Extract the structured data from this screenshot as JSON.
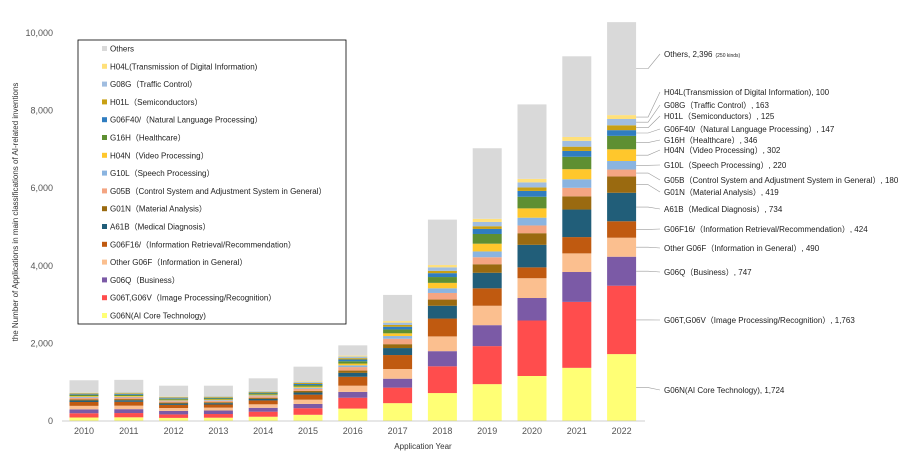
{
  "chart_data": {
    "type": "bar",
    "stacked": true,
    "title": "",
    "xlabel": "Application Year",
    "ylabel": "the Number of Applications in main classifications of AI-related inventions",
    "ylim": [
      0,
      10000
    ],
    "yticks": [
      0,
      2000,
      4000,
      6000,
      8000,
      10000
    ],
    "ytick_labels": [
      "0",
      "2,000",
      "4,000",
      "6,000",
      "8,000",
      "10,000"
    ],
    "grid": false,
    "legend_position": "top-left",
    "categories": [
      "2010",
      "2011",
      "2012",
      "2013",
      "2014",
      "2015",
      "2016",
      "2017",
      "2018",
      "2019",
      "2020",
      "2021",
      "2022"
    ],
    "series": [
      {
        "name": "G06N(AI Core Technology)",
        "color": "#ffff75",
        "values": [
          90,
          95,
          80,
          85,
          110,
          160,
          320,
          460,
          720,
          950,
          1160,
          1370,
          1724
        ]
      },
      {
        "name": "G06T,G06V（Image Processing/Recognition）",
        "color": "#ff4d4d",
        "values": [
          110,
          110,
          90,
          95,
          130,
          170,
          280,
          400,
          690,
          980,
          1430,
          1700,
          1763
        ]
      },
      {
        "name": "G06Q（Business）",
        "color": "#7b5aa6",
        "values": [
          100,
          100,
          90,
          90,
          100,
          110,
          150,
          230,
          390,
          540,
          580,
          770,
          747
        ]
      },
      {
        "name": "Other G06F（Information in General）",
        "color": "#fbbf8f",
        "values": [
          90,
          90,
          75,
          75,
          90,
          110,
          160,
          250,
          380,
          500,
          510,
          480,
          490
        ]
      },
      {
        "name": "G06F16/（Information Retrieval/Recommendation）",
        "color": "#c05a10",
        "values": [
          100,
          100,
          80,
          80,
          100,
          130,
          230,
          360,
          460,
          450,
          280,
          420,
          424
        ]
      },
      {
        "name": "A61B（Medical Diagnosis）",
        "color": "#215e79",
        "values": [
          40,
          40,
          35,
          35,
          40,
          55,
          100,
          180,
          330,
          400,
          580,
          710,
          734
        ]
      },
      {
        "name": "G01N（Material Analysis）",
        "color": "#9a6a10",
        "values": [
          30,
          30,
          25,
          25,
          30,
          40,
          60,
          100,
          160,
          220,
          300,
          340,
          419
        ]
      },
      {
        "name": "G05B（Control System and Adjustment System in General）",
        "color": "#f4a582",
        "values": [
          40,
          40,
          35,
          35,
          40,
          55,
          90,
          140,
          170,
          180,
          200,
          220,
          180
        ]
      },
      {
        "name": "G10L（Speech Processing）",
        "color": "#8ab4e0",
        "values": [
          20,
          20,
          18,
          18,
          20,
          28,
          45,
          70,
          120,
          150,
          200,
          220,
          220
        ]
      },
      {
        "name": "H04N（Video Processing）",
        "color": "#ffc72c",
        "values": [
          20,
          20,
          18,
          18,
          20,
          28,
          45,
          70,
          140,
          200,
          240,
          260,
          302
        ]
      },
      {
        "name": "G16H（Healthcare）",
        "color": "#5e8f32",
        "values": [
          30,
          30,
          25,
          25,
          30,
          40,
          60,
          100,
          150,
          250,
          300,
          320,
          346
        ]
      },
      {
        "name": "G06F40/（Natural Language Processing）",
        "color": "#2f7dc0",
        "values": [
          20,
          20,
          18,
          18,
          20,
          28,
          45,
          70,
          100,
          130,
          150,
          150,
          147
        ]
      },
      {
        "name": "H01L（Semiconductors）",
        "color": "#c8a014",
        "values": [
          20,
          20,
          18,
          18,
          20,
          25,
          35,
          45,
          60,
          70,
          90,
          110,
          125
        ]
      },
      {
        "name": "G08G（Traffic Control）",
        "color": "#a0bde0",
        "values": [
          20,
          20,
          18,
          18,
          20,
          25,
          40,
          60,
          90,
          110,
          130,
          150,
          163
        ]
      },
      {
        "name": "H04L(Transmission of Digital Information)",
        "color": "#ffe07a",
        "values": [
          10,
          10,
          8,
          8,
          10,
          15,
          25,
          40,
          60,
          80,
          90,
          100,
          100
        ]
      },
      {
        "name": "Others",
        "color": "#d9d9d9",
        "values": [
          310,
          315,
          277,
          267,
          320,
          381,
          265,
          675,
          1170,
          1820,
          1920,
          2080,
          2396
        ]
      }
    ],
    "annotations": [
      "Others, 2,396",
      "H04L(Transmission of Digital Information), 100",
      "G08G（Traffic Control）, 163",
      "H01L（Semiconductors）, 125",
      "G06F40/（Natural Language Processing）, 147",
      "G16H（Healthcare）, 346",
      "H04N（Video Processing）, 302",
      "G10L（Speech Processing）, 220",
      "G05B（Control System and Adjustment System in General）, 180",
      "G01N（Material Analysis）, 419",
      "A61B（Medical Diagnosis）, 734",
      "G06F16/（Information Retrieval/Recommendation）, 424",
      "Other G06F（Information in General）, 490",
      "G06Q（Business）, 747",
      "G06T,G06V（Image Processing/Recognition）, 1,763",
      "G06N(AI Core Technology), 1,724"
    ],
    "others_note": "(250 kinds)"
  }
}
